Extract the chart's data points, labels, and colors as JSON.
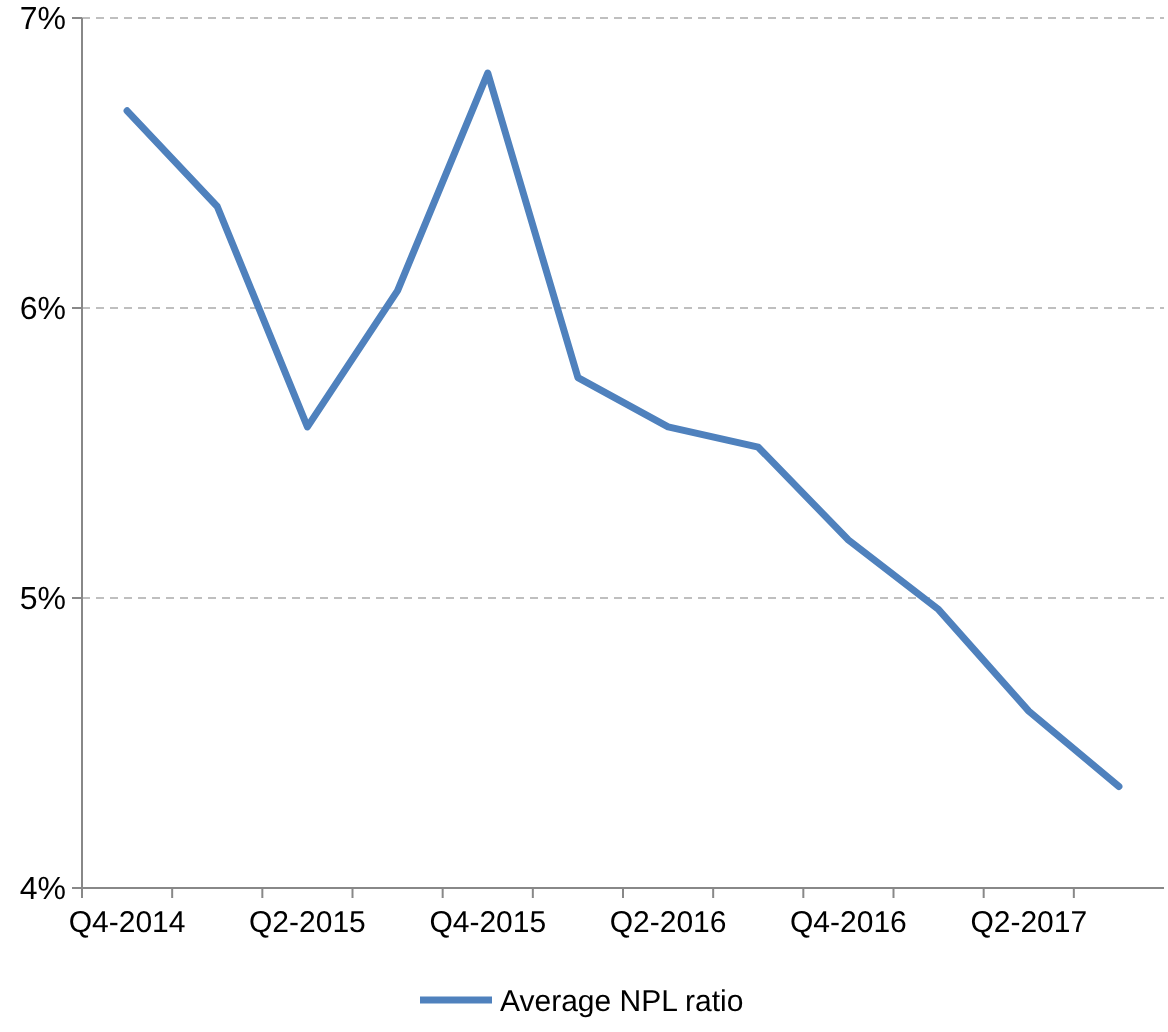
{
  "chart_data": {
    "type": "line",
    "categories": [
      "Q4-2014",
      null,
      "Q2-2015",
      null,
      "Q4-2015",
      null,
      "Q2-2016",
      null,
      "Q4-2016",
      null,
      "Q2-2017",
      null
    ],
    "series": [
      {
        "name": "Average NPL ratio",
        "color": "#4f81bd",
        "values": [
          6.68,
          6.35,
          5.59,
          6.06,
          6.81,
          5.76,
          5.59,
          5.52,
          5.2,
          4.96,
          4.61,
          4.35
        ]
      }
    ],
    "ylim": [
      4,
      7
    ],
    "yticks": [
      {
        "value": 4,
        "label": "4%"
      },
      {
        "value": 5,
        "label": "5%"
      },
      {
        "value": 6,
        "label": "6%"
      },
      {
        "value": 7,
        "label": "7%"
      }
    ],
    "grid": "y",
    "legend": "bottom",
    "marker": "none",
    "line_style": "solid"
  }
}
